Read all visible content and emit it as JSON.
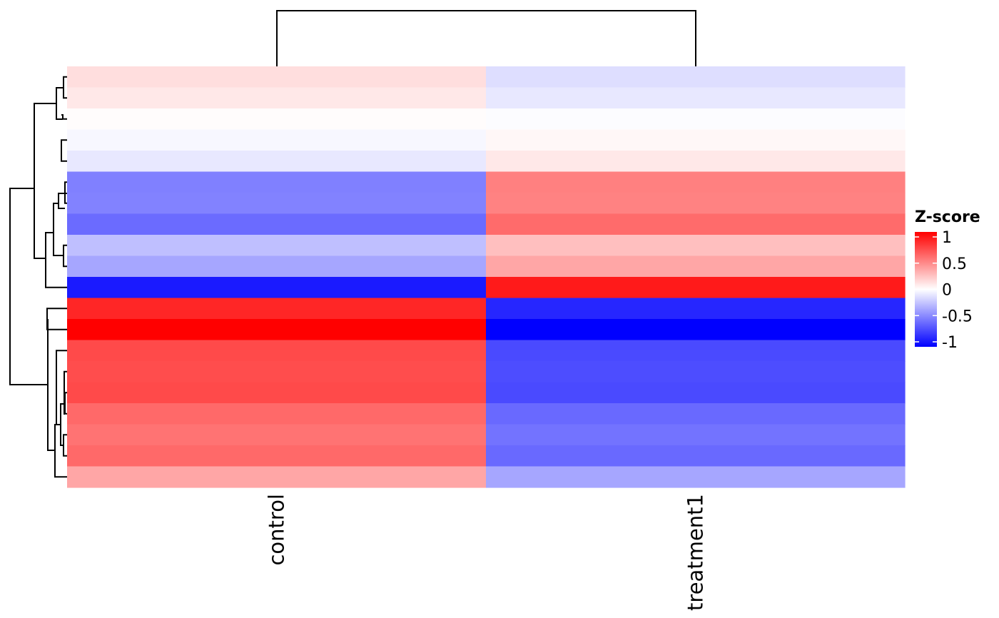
{
  "chart_data": {
    "type": "heatmap",
    "title": "",
    "columns": [
      "control",
      "treatment1"
    ],
    "values": [
      [
        0.13,
        -0.13
      ],
      [
        0.09,
        -0.09
      ],
      [
        0.01,
        -0.01
      ],
      [
        -0.03,
        0.03
      ],
      [
        -0.09,
        0.09
      ],
      [
        -0.5,
        0.5
      ],
      [
        -0.49,
        0.49
      ],
      [
        -0.58,
        0.58
      ],
      [
        -0.25,
        0.25
      ],
      [
        -0.35,
        0.35
      ],
      [
        -0.9,
        0.9
      ],
      [
        0.85,
        -0.85
      ],
      [
        1.0,
        -1.0
      ],
      [
        0.71,
        -0.71
      ],
      [
        0.7,
        -0.7
      ],
      [
        0.71,
        -0.71
      ],
      [
        0.59,
        -0.59
      ],
      [
        0.55,
        -0.55
      ],
      [
        0.59,
        -0.59
      ],
      [
        0.35,
        -0.35
      ]
    ],
    "row_dendrogram": "row-clustering-tree",
    "column_dendrogram": "column-clustering-tree",
    "color_scale": {
      "low": "#0000ff",
      "mid": "#ffffff",
      "high": "#ff0000",
      "range": [
        -1,
        1
      ]
    },
    "legend": {
      "title": "Z-score",
      "placement": "right",
      "ticks": [
        {
          "value": 1,
          "label": "1"
        },
        {
          "value": 0.5,
          "label": "0.5"
        },
        {
          "value": 0,
          "label": "0"
        },
        {
          "value": -0.5,
          "label": "-0.5"
        },
        {
          "value": -1,
          "label": "-1"
        }
      ]
    }
  }
}
